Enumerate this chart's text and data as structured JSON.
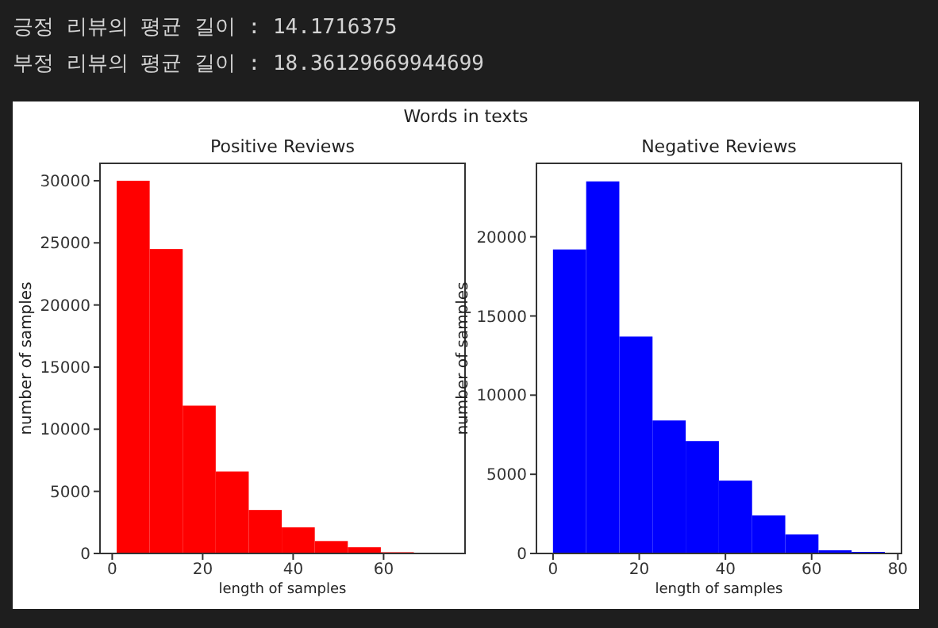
{
  "chart_data": [
    {
      "type": "histogram",
      "title": "Positive Reviews",
      "xlabel": "length of samples",
      "ylabel": "number of samples",
      "color": "#ff0000",
      "bins": [
        1,
        8.3,
        15.6,
        22.9,
        30.2,
        37.5,
        44.8,
        52.1,
        59.4,
        66.7,
        74
      ],
      "values": [
        30000,
        24500,
        11900,
        6600,
        3500,
        2100,
        1000,
        500,
        100,
        20
      ],
      "xlim": [
        -2.7,
        78
      ],
      "xticks": [
        0,
        20,
        40,
        60
      ],
      "ylim": [
        0,
        31400
      ],
      "yticks": [
        0,
        5000,
        10000,
        15000,
        20000,
        25000,
        30000
      ],
      "annotations": [
        "긍정 리뷰의 평균 길이 : 14.1716375",
        "부정 리뷰의 평균 길이 : 18.36129669944699"
      ]
    },
    {
      "type": "histogram",
      "title": "Negative Reviews",
      "xlabel": "length of samples",
      "ylabel": "number of samples",
      "color": "#0000ff",
      "bins": [
        0,
        7.7,
        15.4,
        23.1,
        30.8,
        38.5,
        46.2,
        53.9,
        61.6,
        69.3,
        77
      ],
      "values": [
        19200,
        23500,
        13700,
        8400,
        7100,
        4600,
        2400,
        1200,
        200,
        100
      ],
      "xlim": [
        -3.85,
        80.85
      ],
      "xticks": [
        0,
        20,
        40,
        60,
        80
      ],
      "ylim": [
        0,
        24640
      ],
      "yticks": [
        0,
        5000,
        10000,
        15000,
        20000
      ],
      "annotations": [
        "Words in texts"
      ]
    }
  ]
}
